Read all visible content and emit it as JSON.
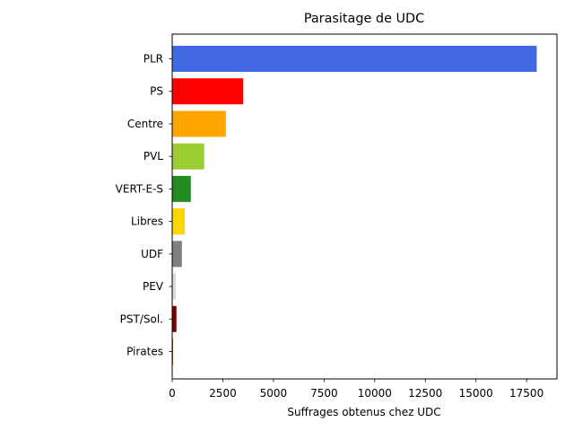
{
  "chart_data": {
    "type": "bar",
    "orientation": "horizontal",
    "title": "Parasitage de UDC",
    "xlabel": "Suffrages obtenus chez UDC",
    "ylabel": "",
    "xlim": [
      0,
      19000
    ],
    "xticks": [
      0,
      2500,
      5000,
      7500,
      10000,
      12500,
      15000,
      17500
    ],
    "categories": [
      "PLR",
      "PS",
      "Centre",
      "PVL",
      "VERT-E-S",
      "Libres",
      "UDF",
      "PEV",
      "PST/Sol.",
      "Pirates"
    ],
    "values": [
      18000,
      3500,
      2650,
      1580,
      920,
      620,
      480,
      180,
      210,
      40
    ],
    "colors": [
      "#4169e1",
      "#ff0000",
      "#ffa500",
      "#9acd32",
      "#228b22",
      "#ffd700",
      "#808080",
      "#dcdcdc",
      "#800000",
      "#8b4513"
    ],
    "grid": false,
    "legend": "none"
  }
}
